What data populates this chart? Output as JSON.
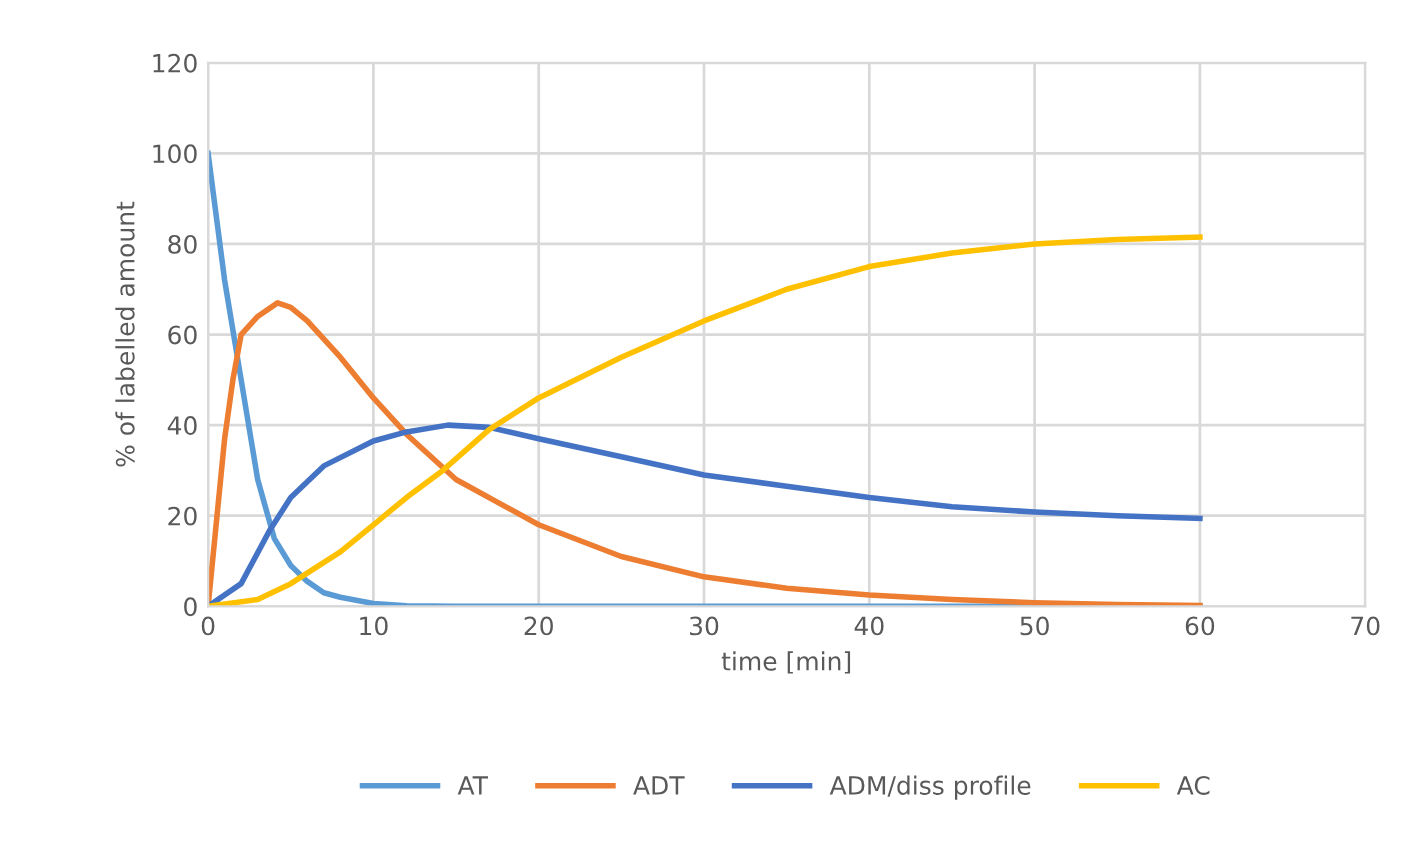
{
  "chart_data": {
    "type": "line",
    "xlabel": "time [min]",
    "ylabel": "% of labelled amount",
    "xlim": [
      0,
      70
    ],
    "ylim": [
      0,
      120
    ],
    "xticks": [
      0,
      10,
      20,
      30,
      40,
      50,
      60,
      70
    ],
    "yticks": [
      0,
      20,
      40,
      60,
      80,
      100,
      120
    ],
    "grid": true,
    "legend": "bottom",
    "marker": "none",
    "line_style": "solid",
    "series": [
      {
        "name": "AT",
        "color": "#5b9bd5",
        "x": [
          0,
          1,
          2,
          3,
          4,
          5,
          6,
          7,
          8,
          10,
          12,
          15,
          20,
          30,
          40,
          50,
          60
        ],
        "values": [
          100,
          72,
          50,
          28,
          15,
          9,
          5.5,
          3,
          2,
          0.6,
          0.1,
          0,
          0,
          0,
          0,
          0,
          0
        ]
      },
      {
        "name": "ADT",
        "color": "#ed7d31",
        "x": [
          0,
          1,
          1.5,
          2,
          3,
          4.2,
          5,
          6,
          8,
          10,
          12,
          15,
          20,
          25,
          30,
          35,
          40,
          45,
          50,
          55,
          60
        ],
        "values": [
          0,
          37,
          50,
          60,
          64,
          67,
          66,
          63,
          55,
          46,
          38,
          28,
          18,
          11,
          6.5,
          4,
          2.5,
          1.5,
          0.8,
          0.4,
          0.2
        ]
      },
      {
        "name": "ADM/diss profile",
        "color": "#4472c4",
        "x": [
          0,
          2,
          3.7,
          5,
          7,
          10,
          12,
          14.5,
          17,
          20,
          25,
          30,
          35,
          40,
          45,
          50,
          55,
          60
        ],
        "values": [
          0,
          5,
          16.6,
          24,
          31,
          36.5,
          38.5,
          40,
          39.5,
          37,
          33,
          29,
          26.5,
          24,
          22,
          20.8,
          20,
          19.4
        ]
      },
      {
        "name": "AC",
        "color": "#ffc000",
        "x": [
          0,
          3,
          5,
          8,
          10,
          12,
          14.2,
          17,
          20,
          25,
          30,
          35,
          40,
          45,
          50,
          55,
          60
        ],
        "values": [
          0,
          1.5,
          5,
          12,
          18,
          24,
          30,
          39,
          46,
          55,
          63,
          70,
          75,
          78,
          80,
          81,
          81.5
        ]
      }
    ]
  }
}
